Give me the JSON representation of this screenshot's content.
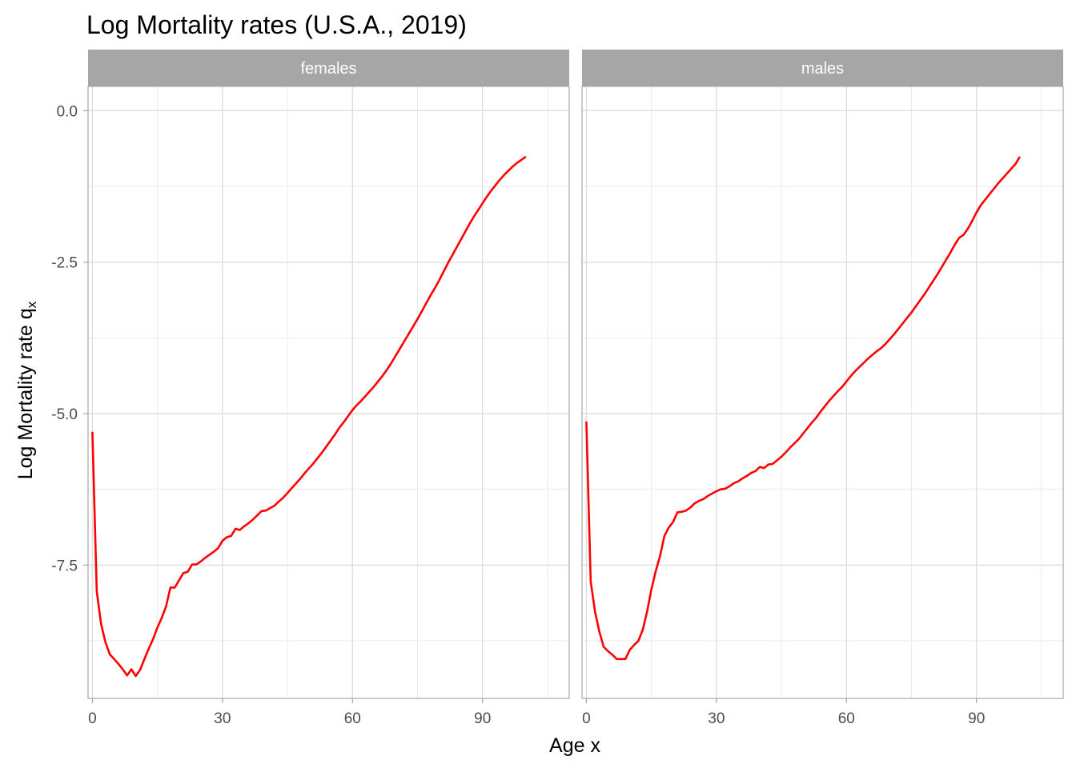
{
  "chart_data": {
    "type": "line",
    "title": "Log Mortality rates (U.S.A., 2019)",
    "xlabel": "Age x",
    "ylabel": "Log Mortality rate q",
    "ylabel_subscript": "x",
    "xlim": [
      -1,
      110
    ],
    "ylim": [
      -9.7,
      0.4
    ],
    "x_ticks": [
      0,
      30,
      60,
      90
    ],
    "x_tick_labels": [
      "0",
      "30",
      "60",
      "90"
    ],
    "y_ticks": [
      0.0,
      -2.5,
      -5.0,
      -7.5
    ],
    "y_tick_labels": [
      "0.0",
      "-2.5",
      "-5.0",
      "-7.5"
    ],
    "grid": true,
    "line_color": "#ff0000",
    "panels": [
      {
        "strip_label": "females",
        "points": [
          [
            0,
            -5.3
          ],
          [
            1,
            -7.93
          ],
          [
            2,
            -8.47
          ],
          [
            3,
            -8.77
          ],
          [
            4,
            -8.97
          ],
          [
            5,
            -9.05
          ],
          [
            6,
            -9.13
          ],
          [
            7,
            -9.22
          ],
          [
            8,
            -9.32
          ],
          [
            9,
            -9.22
          ],
          [
            10,
            -9.33
          ],
          [
            11,
            -9.23
          ],
          [
            12,
            -9.05
          ],
          [
            13,
            -8.88
          ],
          [
            14,
            -8.72
          ],
          [
            15,
            -8.53
          ],
          [
            16,
            -8.37
          ],
          [
            17,
            -8.18
          ],
          [
            18,
            -7.87
          ],
          [
            19,
            -7.87
          ],
          [
            20,
            -7.75
          ],
          [
            21,
            -7.63
          ],
          [
            22,
            -7.61
          ],
          [
            23,
            -7.49
          ],
          [
            24,
            -7.49
          ],
          [
            25,
            -7.44
          ],
          [
            26,
            -7.38
          ],
          [
            27,
            -7.33
          ],
          [
            28,
            -7.28
          ],
          [
            29,
            -7.22
          ],
          [
            30,
            -7.1
          ],
          [
            31,
            -7.04
          ],
          [
            32,
            -7.02
          ],
          [
            33,
            -6.9
          ],
          [
            34,
            -6.92
          ],
          [
            35,
            -6.86
          ],
          [
            36,
            -6.81
          ],
          [
            37,
            -6.75
          ],
          [
            38,
            -6.68
          ],
          [
            39,
            -6.61
          ],
          [
            40,
            -6.6
          ],
          [
            41,
            -6.56
          ],
          [
            42,
            -6.52
          ],
          [
            43,
            -6.45
          ],
          [
            44,
            -6.39
          ],
          [
            45,
            -6.31
          ],
          [
            46,
            -6.23
          ],
          [
            47,
            -6.15
          ],
          [
            48,
            -6.07
          ],
          [
            49,
            -5.98
          ],
          [
            50,
            -5.9
          ],
          [
            51,
            -5.82
          ],
          [
            52,
            -5.73
          ],
          [
            53,
            -5.64
          ],
          [
            54,
            -5.54
          ],
          [
            55,
            -5.44
          ],
          [
            56,
            -5.34
          ],
          [
            57,
            -5.23
          ],
          [
            58,
            -5.14
          ],
          [
            59,
            -5.04
          ],
          [
            60,
            -4.94
          ],
          [
            61,
            -4.86
          ],
          [
            62,
            -4.79
          ],
          [
            63,
            -4.71
          ],
          [
            64,
            -4.63
          ],
          [
            65,
            -4.55
          ],
          [
            66,
            -4.46
          ],
          [
            67,
            -4.37
          ],
          [
            68,
            -4.27
          ],
          [
            69,
            -4.16
          ],
          [
            70,
            -4.04
          ],
          [
            71,
            -3.92
          ],
          [
            72,
            -3.8
          ],
          [
            73,
            -3.68
          ],
          [
            74,
            -3.56
          ],
          [
            75,
            -3.44
          ],
          [
            76,
            -3.31
          ],
          [
            77,
            -3.18
          ],
          [
            78,
            -3.05
          ],
          [
            79,
            -2.93
          ],
          [
            80,
            -2.8
          ],
          [
            81,
            -2.66
          ],
          [
            82,
            -2.52
          ],
          [
            83,
            -2.39
          ],
          [
            84,
            -2.26
          ],
          [
            85,
            -2.13
          ],
          [
            86,
            -2.0
          ],
          [
            87,
            -1.87
          ],
          [
            88,
            -1.75
          ],
          [
            89,
            -1.64
          ],
          [
            90,
            -1.53
          ],
          [
            91,
            -1.42
          ],
          [
            92,
            -1.32
          ],
          [
            93,
            -1.23
          ],
          [
            94,
            -1.14
          ],
          [
            95,
            -1.06
          ],
          [
            96,
            -0.99
          ],
          [
            97,
            -0.92
          ],
          [
            98,
            -0.86
          ],
          [
            99,
            -0.81
          ],
          [
            100,
            -0.76
          ]
        ]
      },
      {
        "strip_label": "males",
        "points": [
          [
            0,
            -5.13
          ],
          [
            1,
            -7.77
          ],
          [
            2,
            -8.27
          ],
          [
            3,
            -8.6
          ],
          [
            4,
            -8.85
          ],
          [
            5,
            -8.92
          ],
          [
            6,
            -8.98
          ],
          [
            7,
            -9.05
          ],
          [
            8,
            -9.05
          ],
          [
            9,
            -9.05
          ],
          [
            10,
            -8.9
          ],
          [
            11,
            -8.82
          ],
          [
            12,
            -8.75
          ],
          [
            13,
            -8.57
          ],
          [
            14,
            -8.27
          ],
          [
            15,
            -7.9
          ],
          [
            16,
            -7.6
          ],
          [
            17,
            -7.35
          ],
          [
            18,
            -7.02
          ],
          [
            19,
            -6.88
          ],
          [
            20,
            -6.79
          ],
          [
            21,
            -6.63
          ],
          [
            22,
            -6.62
          ],
          [
            23,
            -6.6
          ],
          [
            24,
            -6.55
          ],
          [
            25,
            -6.48
          ],
          [
            26,
            -6.44
          ],
          [
            27,
            -6.41
          ],
          [
            28,
            -6.36
          ],
          [
            29,
            -6.32
          ],
          [
            30,
            -6.28
          ],
          [
            31,
            -6.25
          ],
          [
            32,
            -6.24
          ],
          [
            33,
            -6.2
          ],
          [
            34,
            -6.15
          ],
          [
            35,
            -6.12
          ],
          [
            36,
            -6.07
          ],
          [
            37,
            -6.03
          ],
          [
            38,
            -5.98
          ],
          [
            39,
            -5.95
          ],
          [
            40,
            -5.88
          ],
          [
            41,
            -5.9
          ],
          [
            42,
            -5.84
          ],
          [
            43,
            -5.83
          ],
          [
            44,
            -5.77
          ],
          [
            45,
            -5.71
          ],
          [
            46,
            -5.64
          ],
          [
            47,
            -5.56
          ],
          [
            48,
            -5.49
          ],
          [
            49,
            -5.42
          ],
          [
            50,
            -5.33
          ],
          [
            51,
            -5.24
          ],
          [
            52,
            -5.15
          ],
          [
            53,
            -5.07
          ],
          [
            54,
            -4.97
          ],
          [
            55,
            -4.88
          ],
          [
            56,
            -4.79
          ],
          [
            57,
            -4.71
          ],
          [
            58,
            -4.63
          ],
          [
            59,
            -4.56
          ],
          [
            60,
            -4.47
          ],
          [
            61,
            -4.38
          ],
          [
            62,
            -4.3
          ],
          [
            63,
            -4.23
          ],
          [
            64,
            -4.16
          ],
          [
            65,
            -4.09
          ],
          [
            66,
            -4.03
          ],
          [
            67,
            -3.97
          ],
          [
            68,
            -3.92
          ],
          [
            69,
            -3.85
          ],
          [
            70,
            -3.77
          ],
          [
            71,
            -3.69
          ],
          [
            72,
            -3.6
          ],
          [
            73,
            -3.51
          ],
          [
            74,
            -3.42
          ],
          [
            75,
            -3.33
          ],
          [
            76,
            -3.23
          ],
          [
            77,
            -3.13
          ],
          [
            78,
            -3.03
          ],
          [
            79,
            -2.92
          ],
          [
            80,
            -2.81
          ],
          [
            81,
            -2.7
          ],
          [
            82,
            -2.58
          ],
          [
            83,
            -2.46
          ],
          [
            84,
            -2.34
          ],
          [
            85,
            -2.21
          ],
          [
            86,
            -2.1
          ],
          [
            87,
            -2.05
          ],
          [
            88,
            -1.95
          ],
          [
            89,
            -1.82
          ],
          [
            90,
            -1.68
          ],
          [
            91,
            -1.56
          ],
          [
            92,
            -1.47
          ],
          [
            93,
            -1.38
          ],
          [
            94,
            -1.29
          ],
          [
            95,
            -1.2
          ],
          [
            96,
            -1.12
          ],
          [
            97,
            -1.04
          ],
          [
            98,
            -0.96
          ],
          [
            99,
            -0.88
          ],
          [
            100,
            -0.76
          ]
        ]
      }
    ]
  }
}
